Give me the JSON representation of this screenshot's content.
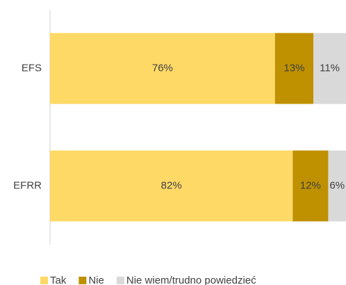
{
  "chart_data": {
    "type": "stacked-barh",
    "categories": [
      "EFS",
      "EFRR"
    ],
    "series": [
      {
        "name": "Tak",
        "color": "#FFD966",
        "values": [
          76,
          82
        ],
        "value_labels": [
          "76%",
          "82%"
        ]
      },
      {
        "name": "Nie",
        "color": "#BF9000",
        "values": [
          13,
          12
        ],
        "value_labels": [
          "13%",
          "12%"
        ]
      },
      {
        "name": "Nie wiem/trudno powiedzieć",
        "color": "#D9D9D9",
        "values": [
          11,
          6
        ],
        "value_labels": [
          "11%",
          "6%"
        ]
      }
    ],
    "xlim": [
      0,
      100
    ],
    "legend": "bottom"
  }
}
